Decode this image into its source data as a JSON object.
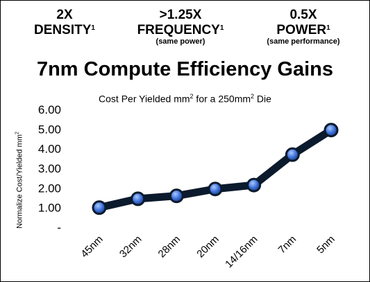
{
  "stats": [
    {
      "line1": "2X",
      "line2": "DENSITY",
      "sup": "1",
      "note": ""
    },
    {
      "line1": ">1.25X",
      "line2": "FREQUENCY",
      "sup": "1",
      "note": "(same power)"
    },
    {
      "line1": "0.5X",
      "line2": "POWER",
      "sup": "1",
      "note": "(same performance)"
    }
  ],
  "headline": "7nm Compute Efficiency Gains",
  "chart_data": {
    "type": "line",
    "subtitle_parts": {
      "a": "Cost Per Yielded mm",
      "a_sup": "2",
      "b": " for a 250mm",
      "b_sup": "2",
      "c": " Die"
    },
    "ylabel_parts": {
      "a": "Normalize Cost/Yielded mm",
      "a_sup": "2"
    },
    "categories": [
      "45nm",
      "32nm",
      "28nm",
      "20nm",
      "14/16nm",
      "7nm",
      "5nm"
    ],
    "values": [
      1.0,
      1.45,
      1.6,
      1.95,
      2.15,
      3.7,
      4.95
    ],
    "ylim": [
      0,
      6
    ],
    "yticks": [
      0,
      1,
      2,
      3,
      4,
      5,
      6
    ],
    "ytick_labels": [
      "-",
      "1.00",
      "2.00",
      "3.00",
      "4.00",
      "5.00",
      "6.00"
    ],
    "grid": false,
    "legend": "none",
    "line_color": "#0b1a2c",
    "marker_color": "#3a6fd8"
  }
}
